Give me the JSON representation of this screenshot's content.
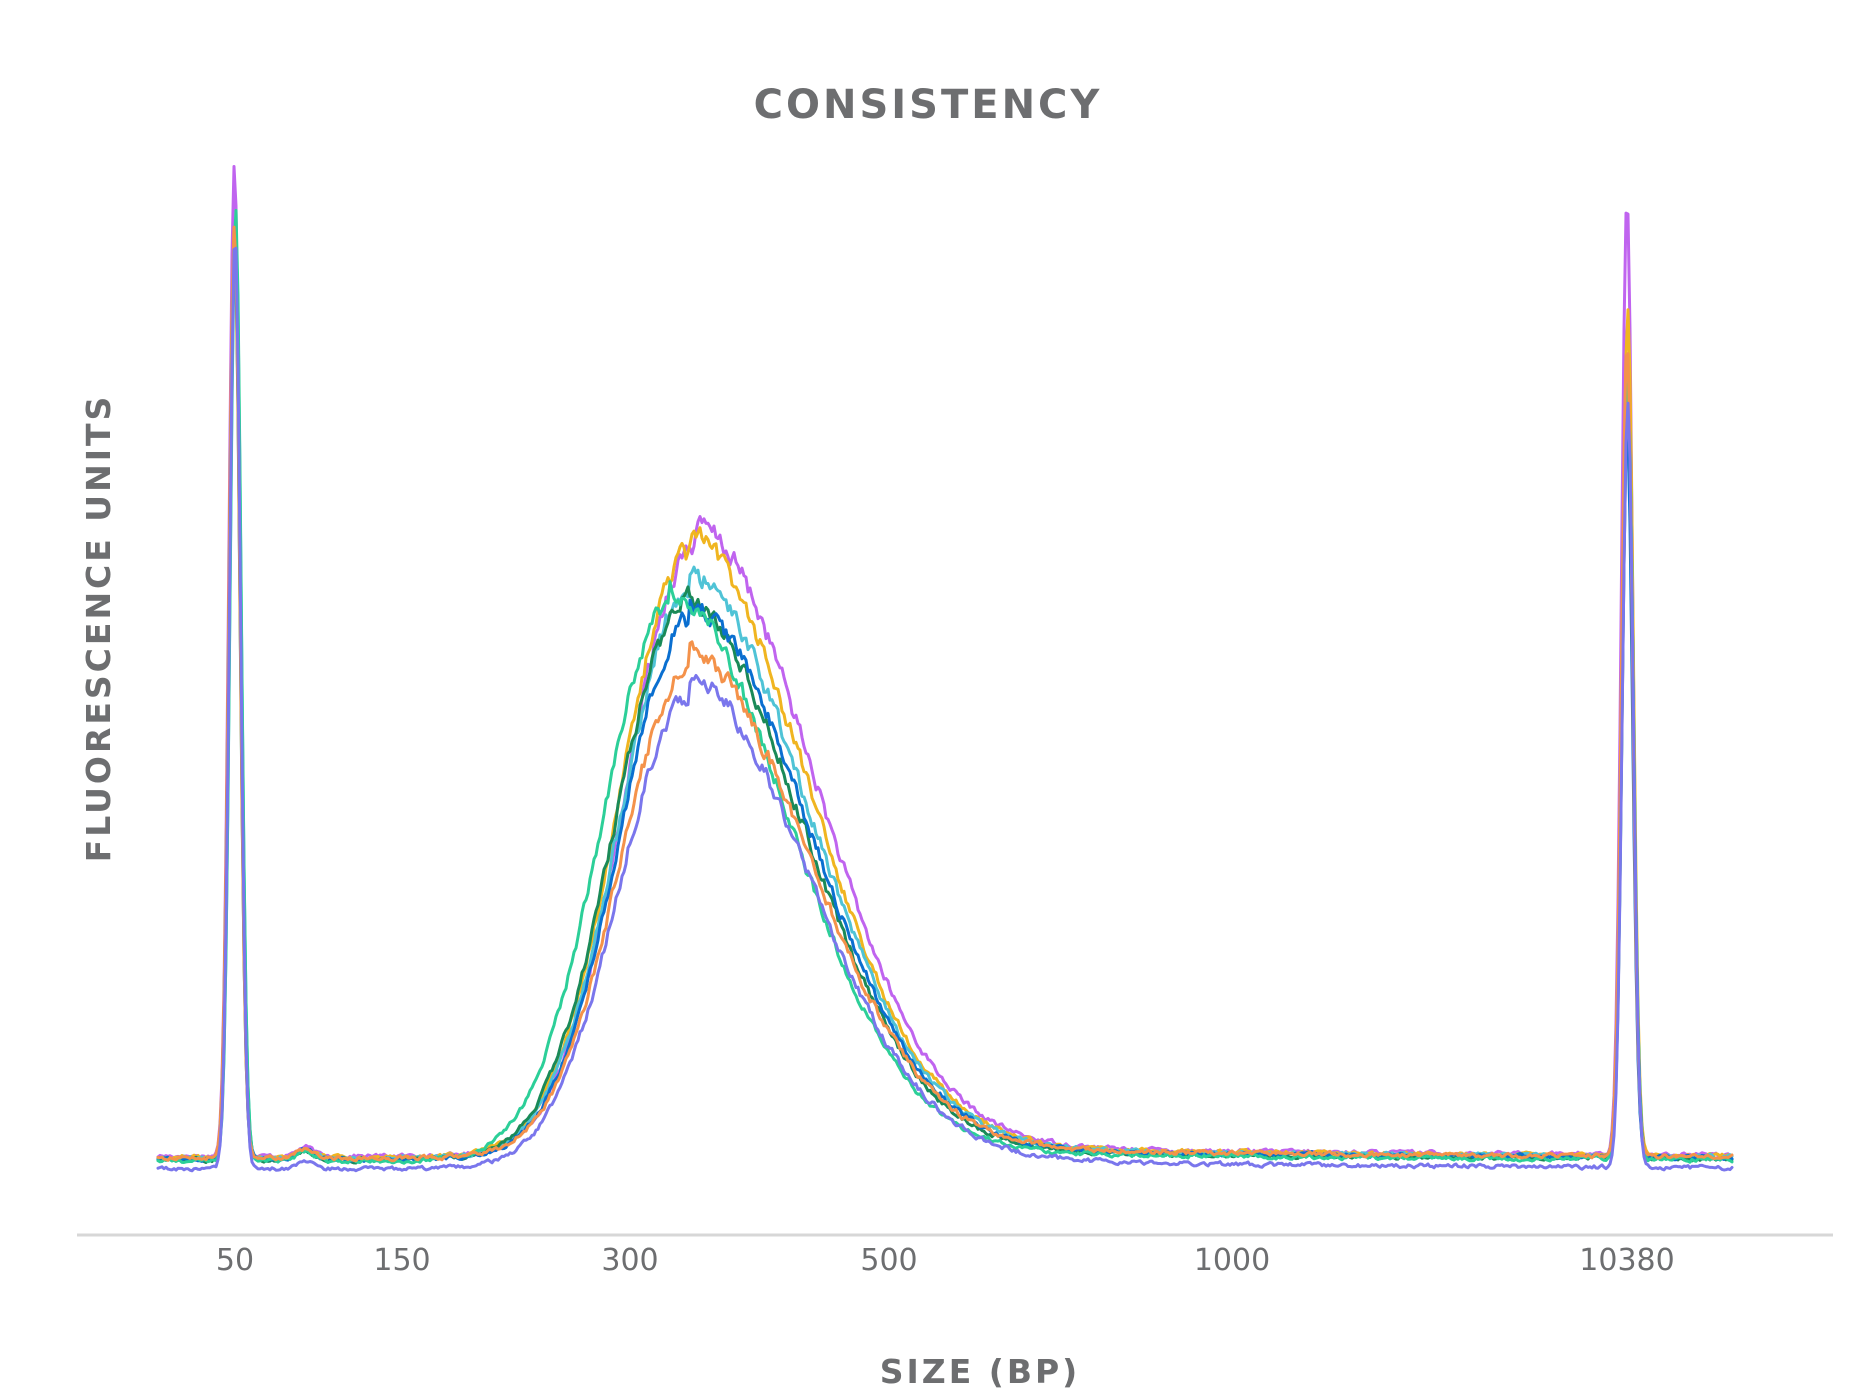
{
  "chart_data": {
    "type": "line",
    "title": "CONSISTENCY",
    "xlabel": "SIZE (BP)",
    "ylabel": "FLUORESCENCE UNITS",
    "xscale": "categorical-ladder (non-linear)",
    "x_ticks": [
      "50",
      "150",
      "300",
      "500",
      "1000",
      "10380"
    ],
    "y_ticks": [],
    "grid": false,
    "legend": "none",
    "peaks": {
      "lower_marker_bp": 50,
      "upper_marker_bp": 10380,
      "library_mode_bp": 350
    },
    "series": [
      {
        "color": "#c064ef",
        "marker_low": 100,
        "marker_high": 96,
        "library_peak": 61.5,
        "library_center_bp": 350,
        "baseline": 1.0
      },
      {
        "color": "#f0b520",
        "marker_low": 95,
        "marker_high": 85,
        "library_peak": 60.5,
        "library_center_bp": 345,
        "baseline": 0.9
      },
      {
        "color": "#4fc3d6",
        "marker_low": 94,
        "marker_high": 80,
        "library_peak": 56.8,
        "library_center_bp": 345,
        "baseline": 0.8
      },
      {
        "color": "#1a8a58",
        "marker_low": 93,
        "marker_high": 76,
        "library_peak": 55.0,
        "library_center_bp": 340,
        "baseline": 0.6
      },
      {
        "color": "#0a6fd0",
        "marker_low": 93,
        "marker_high": 74,
        "library_peak": 54.0,
        "library_center_bp": 345,
        "baseline": 0.7
      },
      {
        "color": "#2ccf98",
        "marker_low": 96,
        "marker_high": 78,
        "library_peak": 55.5,
        "library_center_bp": 330,
        "baseline": 0.5
      },
      {
        "color": "#f4924a",
        "marker_low": 94,
        "marker_high": 82,
        "library_peak": 49.0,
        "library_center_bp": 345,
        "baseline": 0.8
      },
      {
        "color": "#7a76ec",
        "marker_low": 94,
        "marker_high": 77,
        "library_peak": 47.5,
        "library_center_bp": 345,
        "baseline": -0.3
      }
    ]
  }
}
